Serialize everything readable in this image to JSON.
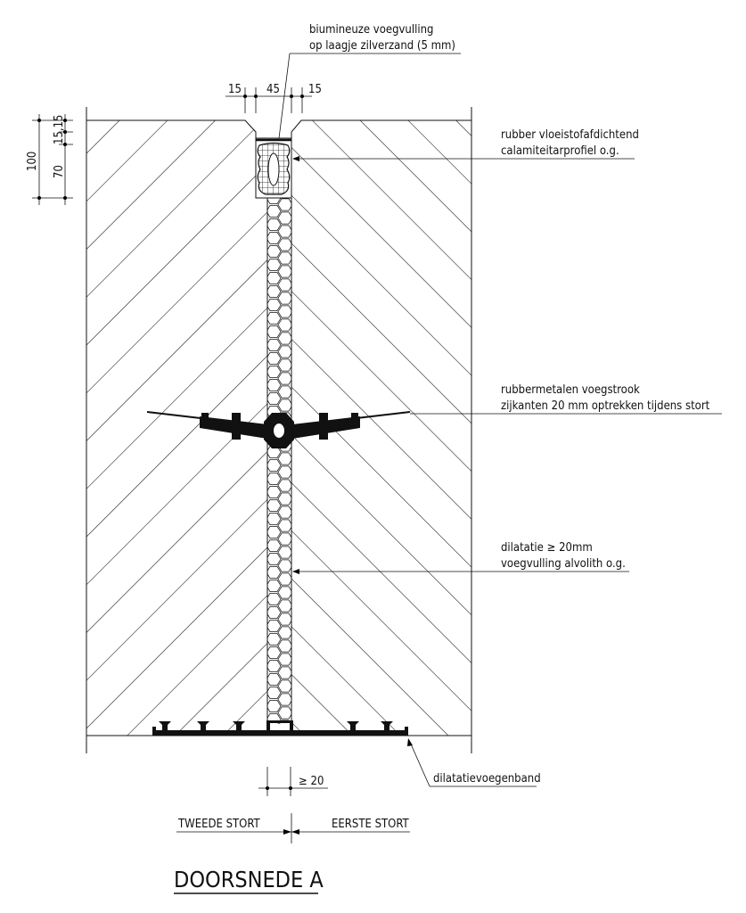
{
  "dimensions": {
    "top_left": "15",
    "top_middle": "45",
    "top_right": "15",
    "left_total": "100",
    "left_small": "15,15",
    "left_lower": "70",
    "joint_min": "≥ 20"
  },
  "labels": {
    "sealant_line1": "biumineuze voegvulling",
    "sealant_line2": "op laagje zilverzand (5 mm)",
    "profile_line1": "rubber vloeistofafdichtend",
    "profile_line2": "calamiteitarprofiel o.g.",
    "waterstop_line1": "rubbermetalen voegstrook",
    "waterstop_line2": "zijkanten 20 mm optrekken tijdens stort",
    "filler_line1": "dilatatie ≥ 20mm",
    "filler_line2": "voegvulling alvolith o.g.",
    "band": "dilatatievoegenband",
    "pour_second": "TWEEDE STORT",
    "pour_first": "EERSTE STORT"
  },
  "title": "DOORSNEDE A"
}
